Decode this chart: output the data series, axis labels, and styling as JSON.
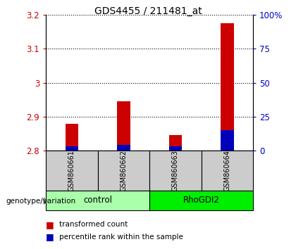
{
  "title": "GDS4455 / 211481_at",
  "samples": [
    "GSM860661",
    "GSM860662",
    "GSM860663",
    "GSM860664"
  ],
  "group_labels": [
    "control",
    "RhoGDI2"
  ],
  "group_colors": [
    "#aaffaa",
    "#00ee00"
  ],
  "transformed_counts": [
    2.88,
    2.945,
    2.845,
    3.175
  ],
  "percentile_ranks": [
    3,
    4,
    3,
    15
  ],
  "y_min": 2.8,
  "y_max": 3.2,
  "y_ticks": [
    2.8,
    2.9,
    3.0,
    3.1,
    3.2
  ],
  "y_tick_labels": [
    "2.8",
    "2.9",
    "3",
    "3.1",
    "3.2"
  ],
  "y2_ticks": [
    0,
    25,
    50,
    75,
    100
  ],
  "y2_tick_labels": [
    "0",
    "25",
    "50",
    "75",
    "100%"
  ],
  "left_color": "#cc0000",
  "right_color": "#0000cc",
  "bar_color_red": "#cc0000",
  "bar_color_blue": "#0000bb",
  "sample_area_color": "#cccccc",
  "bar_width": 0.25
}
